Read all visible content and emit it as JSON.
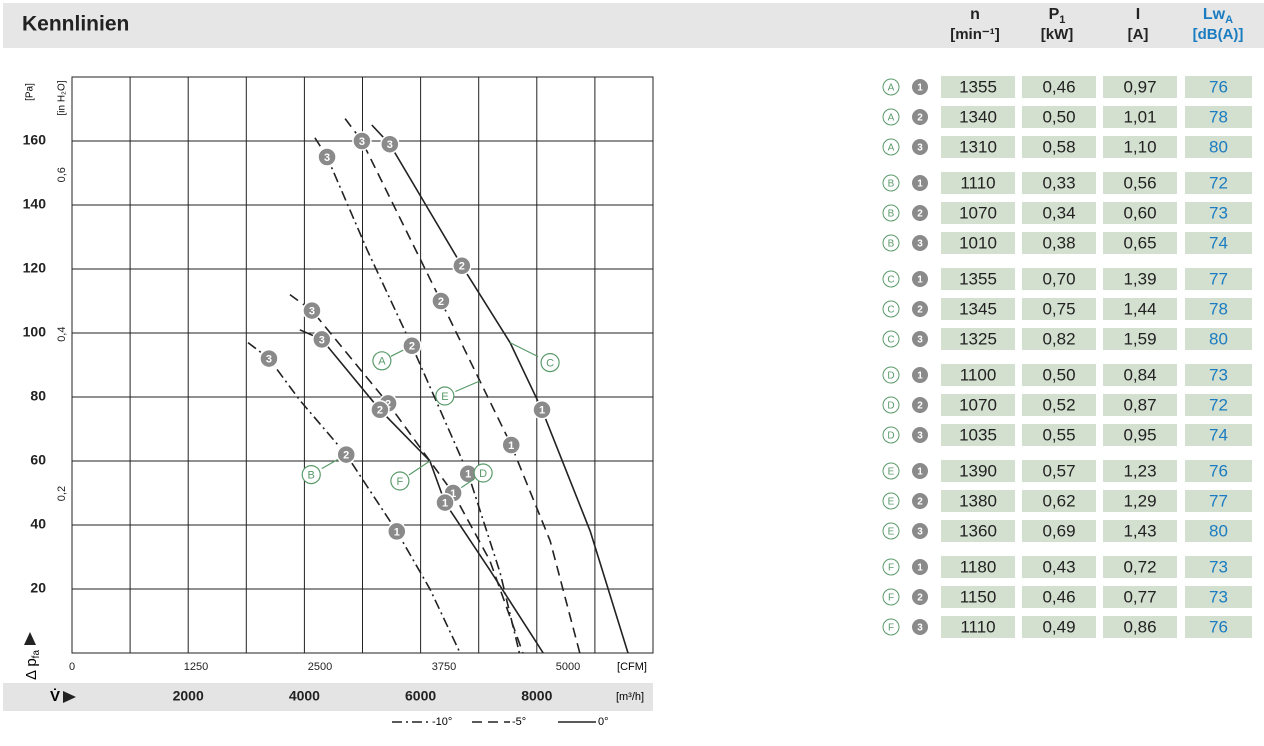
{
  "header": {
    "title": "Kennlinien",
    "columns": [
      {
        "main": "n",
        "sub": "",
        "unit": "[min⁻¹]"
      },
      {
        "main": "P",
        "sub": "1",
        "unit": "[kW]"
      },
      {
        "main": "I",
        "sub": "",
        "unit": "[A]"
      },
      {
        "main": "Lw",
        "sub": "A",
        "unit": "[dB(A)]"
      }
    ]
  },
  "chart_data": {
    "type": "line",
    "y_label": "[Pa]",
    "y2_label": "[in H₂O]",
    "x_label": "[m³/h]",
    "x2_label": "[CFM]",
    "y_axis_title": "Δ p",
    "y_axis_title_sub": "fa",
    "x_axis_title": "V̇",
    "xlim": [
      0,
      10000
    ],
    "xticks": [
      2000,
      4000,
      6000,
      8000
    ],
    "x2lim": [
      0,
      5857
    ],
    "x2ticks": [
      0,
      1250,
      2500,
      3750,
      5000
    ],
    "ylim": [
      0,
      180
    ],
    "yticks": [
      20,
      40,
      60,
      80,
      100,
      120,
      140,
      160
    ],
    "y2lim": [
      0,
      0.7226
    ],
    "y2ticks": [
      {
        "value": 0.2,
        "label": "0,2"
      },
      {
        "value": 0.4,
        "label": "0,4"
      },
      {
        "value": 0.6,
        "label": "0,6"
      }
    ],
    "grid": true,
    "line_color": "#222222",
    "legend": [
      {
        "name": "-10°",
        "style": "dashdot"
      },
      {
        "name": "-5°",
        "style": "dashed"
      },
      {
        "name": "0°",
        "style": "solid"
      }
    ],
    "series": [
      {
        "name": "A",
        "style": "dashdot",
        "x": [
          4180,
          4390,
          5080,
          5850,
          6820,
          7370,
          7700
        ],
        "values": [
          161,
          155,
          126,
          96,
          56,
          25,
          0
        ],
        "markers": {
          "labels": [
            "3",
            "2",
            "1"
          ],
          "x": [
            4390,
            5850,
            6820
          ],
          "values": [
            155,
            96,
            56
          ]
        }
      },
      {
        "name": "B",
        "style": "dashdot",
        "x": [
          3030,
          3390,
          3920,
          4720,
          5590,
          6160,
          6680
        ],
        "values": [
          97,
          92,
          79,
          62,
          38,
          20,
          0
        ],
        "markers": {
          "labels": [
            "3",
            "2",
            "1"
          ],
          "x": [
            3390,
            4720,
            5590
          ],
          "values": [
            92,
            62,
            38
          ]
        }
      },
      {
        "name": "C",
        "style": "solid",
        "x": [
          5160,
          5470,
          6710,
          7540,
          8090,
          8920,
          9570
        ],
        "values": [
          165,
          159,
          121,
          97,
          76,
          38,
          0
        ],
        "markers": {
          "labels": [
            "3",
            "2",
            "1"
          ],
          "x": [
            5470,
            6710,
            8090
          ],
          "values": [
            159,
            121,
            76
          ]
        }
      },
      {
        "name": "D",
        "style": "dashed",
        "x": [
          3750,
          4130,
          5440,
          6560,
          7190,
          7760
        ],
        "values": [
          112,
          107,
          78,
          50,
          29,
          0
        ],
        "markers": {
          "labels": [
            "3",
            "2",
            "1"
          ],
          "x": [
            4130,
            5440,
            6560
          ],
          "values": [
            107,
            78,
            50
          ]
        }
      },
      {
        "name": "E",
        "style": "dashed",
        "x": [
          4700,
          4990,
          6350,
          7020,
          7560,
          8230,
          8740
        ],
        "values": [
          167,
          160,
          110,
          85,
          65,
          35,
          0
        ],
        "markers": {
          "labels": [
            "3",
            "2",
            "1"
          ],
          "x": [
            4990,
            6350,
            7560
          ],
          "values": [
            160,
            110,
            65
          ]
        }
      },
      {
        "name": "F",
        "style": "solid",
        "x": [
          3920,
          4300,
          5300,
          6160,
          6420,
          7190,
          8110
        ],
        "values": [
          101,
          98,
          76,
          60,
          47,
          26,
          0
        ],
        "markers": {
          "labels": [
            "3",
            "2",
            "1"
          ],
          "x": [
            4300,
            5300,
            6420
          ],
          "values": [
            98,
            76,
            47
          ]
        }
      }
    ]
  },
  "table": {
    "rows": [
      [
        "A",
        "1",
        1355,
        "0,46",
        "0,97",
        76
      ],
      [
        "A",
        "2",
        1340,
        "0,50",
        "1,01",
        78
      ],
      [
        "A",
        "3",
        1310,
        "0,58",
        "1,10",
        80
      ],
      [
        "B",
        "1",
        1110,
        "0,33",
        "0,56",
        72
      ],
      [
        "B",
        "2",
        1070,
        "0,34",
        "0,60",
        73
      ],
      [
        "B",
        "3",
        1010,
        "0,38",
        "0,65",
        74
      ],
      [
        "C",
        "1",
        1355,
        "0,70",
        "1,39",
        77
      ],
      [
        "C",
        "2",
        1345,
        "0,75",
        "1,44",
        78
      ],
      [
        "C",
        "3",
        1325,
        "0,82",
        "1,59",
        80
      ],
      [
        "D",
        "1",
        1100,
        "0,50",
        "0,84",
        73
      ],
      [
        "D",
        "2",
        1070,
        "0,52",
        "0,87",
        72
      ],
      [
        "D",
        "3",
        1035,
        "0,55",
        "0,95",
        74
      ],
      [
        "E",
        "1",
        1390,
        "0,57",
        "1,23",
        76
      ],
      [
        "E",
        "2",
        1380,
        "0,62",
        "1,29",
        77
      ],
      [
        "E",
        "3",
        1360,
        "0,69",
        "1,43",
        80
      ],
      [
        "F",
        "1",
        1180,
        "0,43",
        "0,72",
        73
      ],
      [
        "F",
        "2",
        1150,
        "0,46",
        "0,77",
        73
      ],
      [
        "F",
        "3",
        1110,
        "0,49",
        "0,86",
        76
      ]
    ]
  }
}
